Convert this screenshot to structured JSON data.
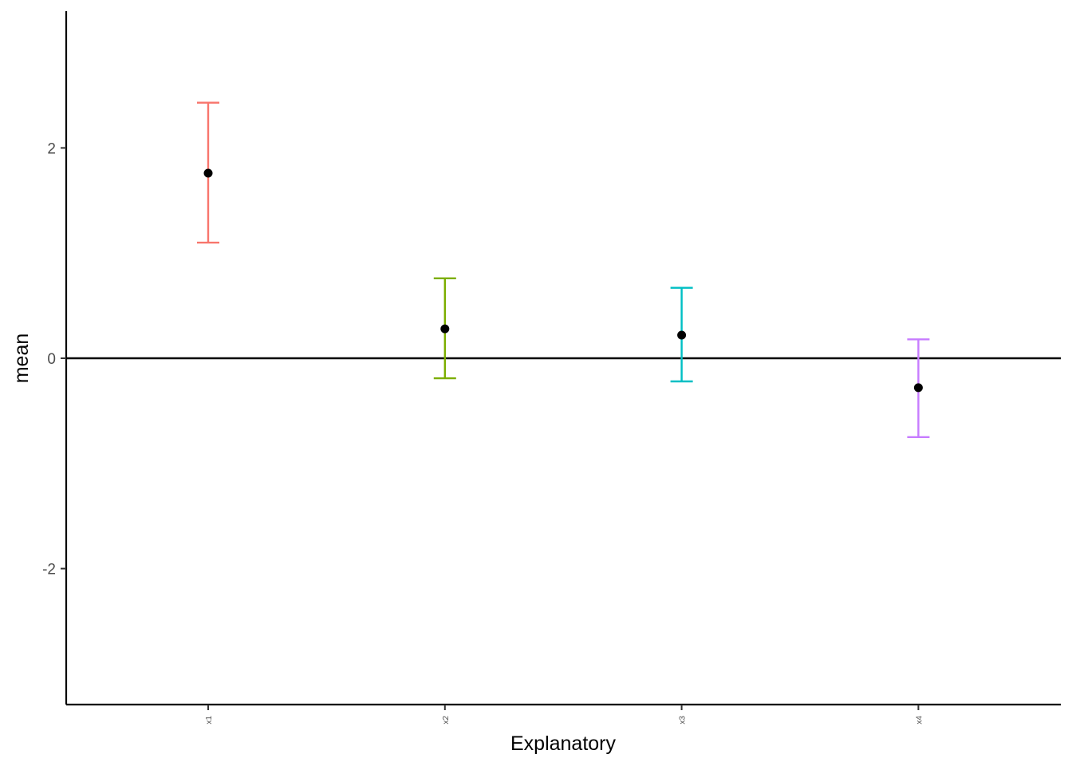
{
  "chart_data": {
    "type": "scatter",
    "title": "",
    "xlabel": "Explanatory",
    "ylabel": "mean",
    "categories": [
      "x1",
      "x2",
      "x3",
      "x4"
    ],
    "yticks": [
      -2,
      0,
      2
    ],
    "ytick_labels": [
      "-2",
      "0",
      "2"
    ],
    "ylim": [
      -3.3,
      3.3
    ],
    "reference_line_y": 0,
    "grid": false,
    "legend": "none",
    "points": [
      {
        "category": "x1",
        "mean": 1.76,
        "lower": 1.1,
        "upper": 2.43,
        "color": "#F8766D"
      },
      {
        "category": "x2",
        "mean": 0.28,
        "lower": -0.19,
        "upper": 0.76,
        "color": "#7CAE00"
      },
      {
        "category": "x3",
        "mean": 0.22,
        "lower": -0.22,
        "upper": 0.67,
        "color": "#00BFC4"
      },
      {
        "category": "x4",
        "mean": -0.28,
        "lower": -0.75,
        "upper": 0.18,
        "color": "#C77CFF"
      }
    ]
  }
}
